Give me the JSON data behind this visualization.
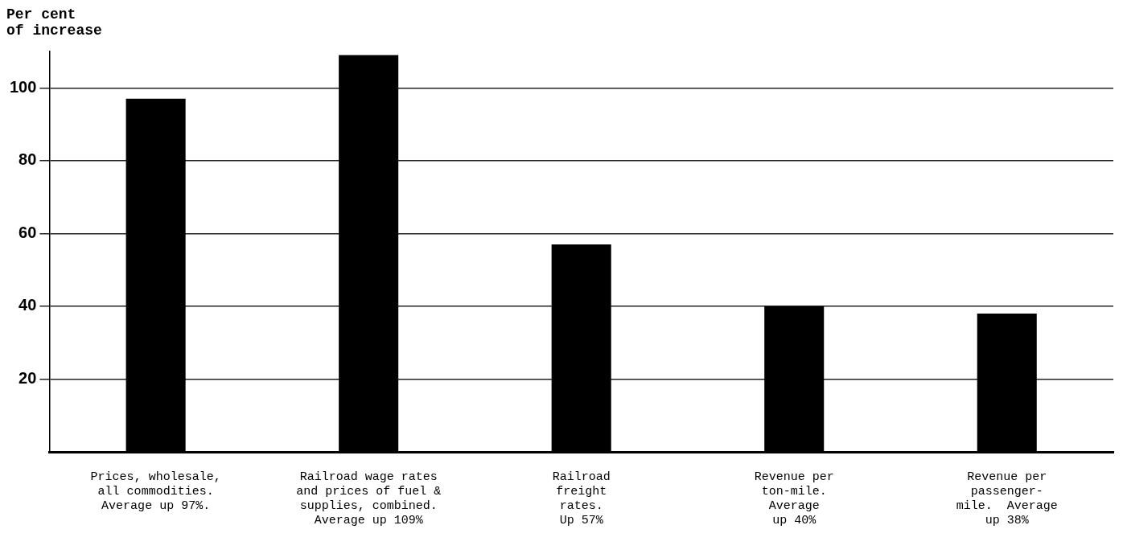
{
  "chart_data": {
    "type": "bar",
    "ylabel": "Per cent\nof increase",
    "categories": [
      "Prices, wholesale,\nall commodities.\nAverage up 97%.",
      "Railroad wage rates\nand prices of fuel &\nsupplies, combined.\nAverage up 109%",
      "Railroad\nfreight\nrates.\nUp 57%",
      "Revenue per\nton-mile.\nAverage\nup 40%",
      "Revenue per\npassenger-\nmile.  Average\nup 38%"
    ],
    "values": [
      97,
      109,
      57,
      40,
      38
    ],
    "color": "#000000",
    "ylim": [
      0,
      110
    ],
    "yticks": [
      20,
      40,
      60,
      80,
      100
    ],
    "grid": "y",
    "legend": false
  }
}
